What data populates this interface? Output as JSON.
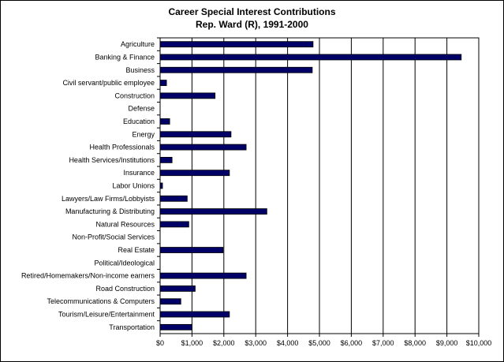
{
  "chart_data": {
    "type": "bar",
    "orientation": "horizontal",
    "title": "Career Special Interest Contributions",
    "subtitle": "Rep. Ward (R), 1991-2000",
    "xlim": [
      0,
      10000
    ],
    "x_ticks": [
      0,
      1000,
      2000,
      3000,
      4000,
      5000,
      6000,
      7000,
      8000,
      9000,
      10000
    ],
    "x_tick_labels": [
      "$0",
      "$1,000",
      "$2,000",
      "$3,000",
      "$4,000",
      "$5,000",
      "$6,000",
      "$7,000",
      "$8,000",
      "$9,000",
      "$10,000"
    ],
    "grid": "vertical",
    "legend": "none",
    "bar_color": "#000066",
    "categories": [
      "Agriculture",
      "Banking & Finance",
      "Business",
      "Civil servant/public employee",
      "Construction",
      "Defense",
      "Education",
      "Energy",
      "Health Professionals",
      "Health Services/Institutions",
      "Insurance",
      "Labor Unions",
      "Lawyers/Law Firms/Lobbyists",
      "Manufacturing & Distributing",
      "Natural Resources",
      "Non-Profit/Social Services",
      "Real Estate",
      "Political/Ideological",
      "Retired/Homemakers/Non-income earners",
      "Road Construction",
      "Telecommunications & Computers",
      "Tourism/Leisure/Entertainment",
      "Transportation"
    ],
    "values": [
      4800,
      9450,
      4775,
      200,
      1725,
      0,
      300,
      2225,
      2700,
      375,
      2175,
      75,
      850,
      3350,
      900,
      0,
      1975,
      0,
      2700,
      1100,
      650,
      2175,
      1000
    ]
  }
}
